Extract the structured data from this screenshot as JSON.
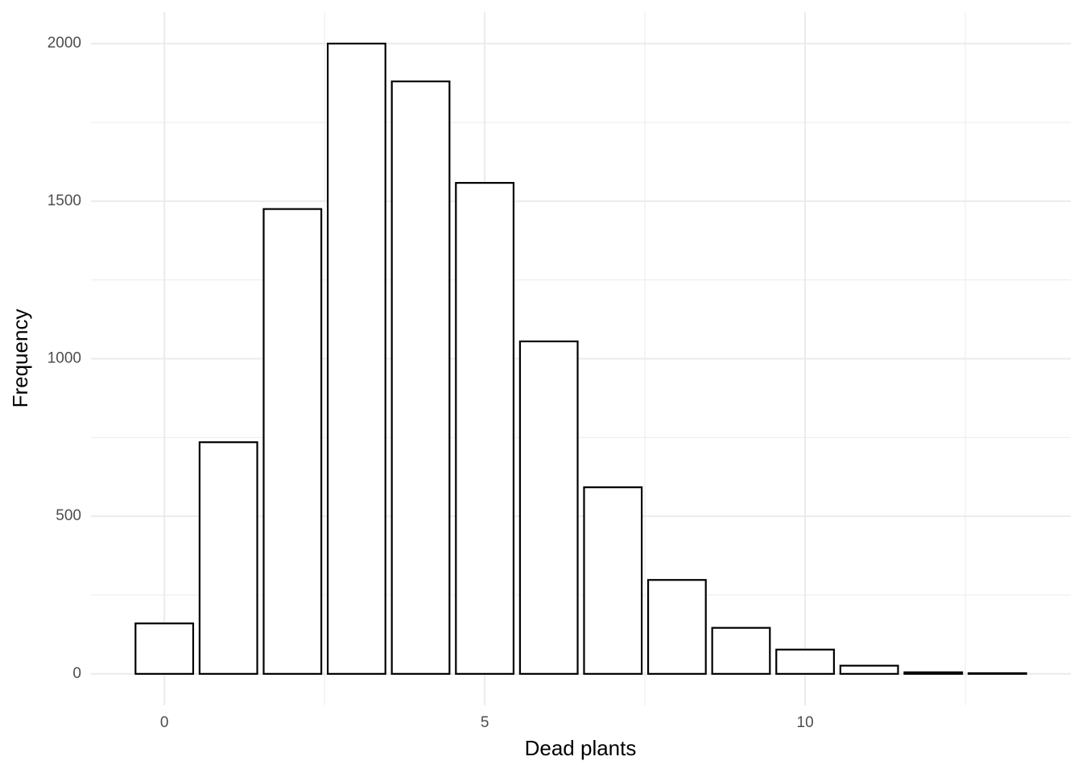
{
  "chart_data": {
    "type": "bar",
    "x_label": "Dead plants",
    "y_label": "Frequency",
    "x": [
      0,
      1,
      2,
      3,
      4,
      5,
      6,
      7,
      8,
      9,
      10,
      11,
      12,
      13
    ],
    "values": [
      160,
      735,
      1475,
      2000,
      1880,
      1558,
      1055,
      592,
      298,
      146,
      77,
      26,
      5,
      2
    ],
    "fill": "#ffffff",
    "color": "#000000",
    "xlim": [
      -1.145,
      14.145
    ],
    "xticks": [
      0,
      5,
      10
    ],
    "x_minor_ticks": [
      2.5,
      7.5,
      12.5
    ],
    "ylim": [
      -100,
      2100
    ],
    "yticks": [
      0,
      500,
      1000,
      1500,
      2000
    ],
    "y_minor_ticks": [
      250,
      750,
      1250,
      1750
    ],
    "grid": true
  }
}
